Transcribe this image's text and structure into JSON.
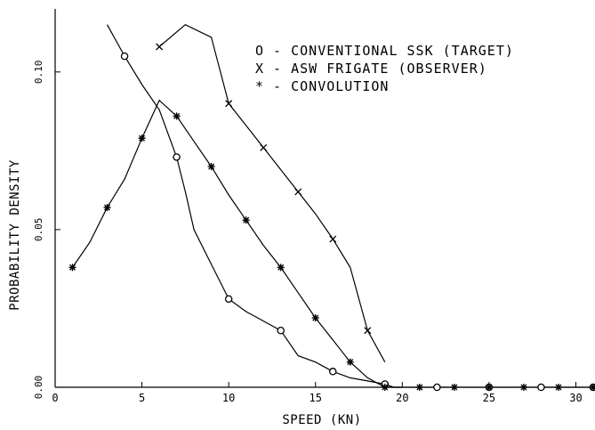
{
  "chart_data": {
    "type": "line",
    "xlabel": "SPEED (KN)",
    "ylabel": "PROBABILITY DENSITY",
    "xlim": [
      0,
      31
    ],
    "ylim": [
      0.0,
      0.12
    ],
    "x_ticks": [
      0,
      5,
      10,
      15,
      20,
      25,
      30
    ],
    "x_tick_labels": [
      "0",
      "5",
      "10",
      "15",
      "20",
      "25",
      "30"
    ],
    "y_ticks": [
      0.0,
      0.05,
      0.1
    ],
    "y_tick_labels": [
      "0.00",
      "0.05",
      "0.10"
    ],
    "legend": {
      "placement": "top-right",
      "entries": [
        {
          "marker": "O",
          "text": "O - CONVENTIONAL SSK (TARGET)"
        },
        {
          "marker": "X",
          "text": "X - ASW FRIGATE (OBSERVER)"
        },
        {
          "marker": "*",
          "text": "* - CONVOLUTION"
        }
      ]
    },
    "series": [
      {
        "id": "ssk",
        "marker": "circle",
        "line": [
          [
            3.0,
            0.115
          ],
          [
            4.0,
            0.105
          ],
          [
            5.0,
            0.096
          ],
          [
            6.0,
            0.088
          ],
          [
            7.0,
            0.073
          ],
          [
            7.5,
            0.062
          ],
          [
            8.0,
            0.05
          ],
          [
            9.0,
            0.039
          ],
          [
            10.0,
            0.028
          ],
          [
            11.0,
            0.024
          ],
          [
            12.0,
            0.021
          ],
          [
            13.0,
            0.018
          ],
          [
            14.0,
            0.01
          ],
          [
            15.0,
            0.008
          ],
          [
            16.0,
            0.005
          ],
          [
            17.0,
            0.003
          ],
          [
            18.0,
            0.002
          ],
          [
            19.0,
            0.001
          ],
          [
            19.5,
            0.0
          ],
          [
            20.0,
            0.0
          ]
        ],
        "markers": [
          [
            4,
            0.105
          ],
          [
            7,
            0.073
          ],
          [
            10,
            0.028
          ],
          [
            13,
            0.018
          ],
          [
            16,
            0.005
          ],
          [
            19,
            0.001
          ],
          [
            22,
            0.0
          ],
          [
            25,
            0.0
          ],
          [
            28,
            0.0
          ],
          [
            31,
            0.0
          ]
        ]
      },
      {
        "id": "frigate",
        "marker": "x",
        "line": [
          [
            6.0,
            0.108
          ],
          [
            7.5,
            0.115
          ],
          [
            9.0,
            0.111
          ],
          [
            10.0,
            0.09
          ],
          [
            11.0,
            0.083
          ],
          [
            12.0,
            0.076
          ],
          [
            13.0,
            0.069
          ],
          [
            14.0,
            0.062
          ],
          [
            15.0,
            0.055
          ],
          [
            16.0,
            0.047
          ],
          [
            17.0,
            0.038
          ],
          [
            18.0,
            0.018
          ],
          [
            19.0,
            0.008
          ]
        ],
        "markers": [
          [
            6,
            0.108
          ],
          [
            10,
            0.09
          ],
          [
            12,
            0.076
          ],
          [
            14,
            0.062
          ],
          [
            16,
            0.047
          ],
          [
            18,
            0.018
          ]
        ]
      },
      {
        "id": "convolution",
        "marker": "asterisk",
        "line": [
          [
            1.0,
            0.038
          ],
          [
            2.0,
            0.046
          ],
          [
            3.0,
            0.057
          ],
          [
            4.0,
            0.066
          ],
          [
            5.0,
            0.079
          ],
          [
            6.0,
            0.091
          ],
          [
            7.0,
            0.086
          ],
          [
            8.0,
            0.078
          ],
          [
            9.0,
            0.07
          ],
          [
            10.0,
            0.061
          ],
          [
            11.0,
            0.053
          ],
          [
            12.0,
            0.045
          ],
          [
            13.0,
            0.038
          ],
          [
            14.0,
            0.03
          ],
          [
            15.0,
            0.022
          ],
          [
            16.0,
            0.015
          ],
          [
            17.0,
            0.008
          ],
          [
            18.0,
            0.003
          ],
          [
            19.0,
            0.0
          ],
          [
            20.0,
            0.0
          ],
          [
            31.0,
            0.0
          ]
        ],
        "markers": [
          [
            1,
            0.038
          ],
          [
            3,
            0.057
          ],
          [
            5,
            0.079
          ],
          [
            7,
            0.086
          ],
          [
            9,
            0.07
          ],
          [
            11,
            0.053
          ],
          [
            13,
            0.038
          ],
          [
            15,
            0.022
          ],
          [
            17,
            0.008
          ],
          [
            19,
            0.0
          ],
          [
            21,
            0.0
          ],
          [
            23,
            0.0
          ],
          [
            25,
            0.0
          ],
          [
            27,
            0.0
          ],
          [
            29,
            0.0
          ],
          [
            31,
            0.0
          ]
        ]
      }
    ]
  }
}
